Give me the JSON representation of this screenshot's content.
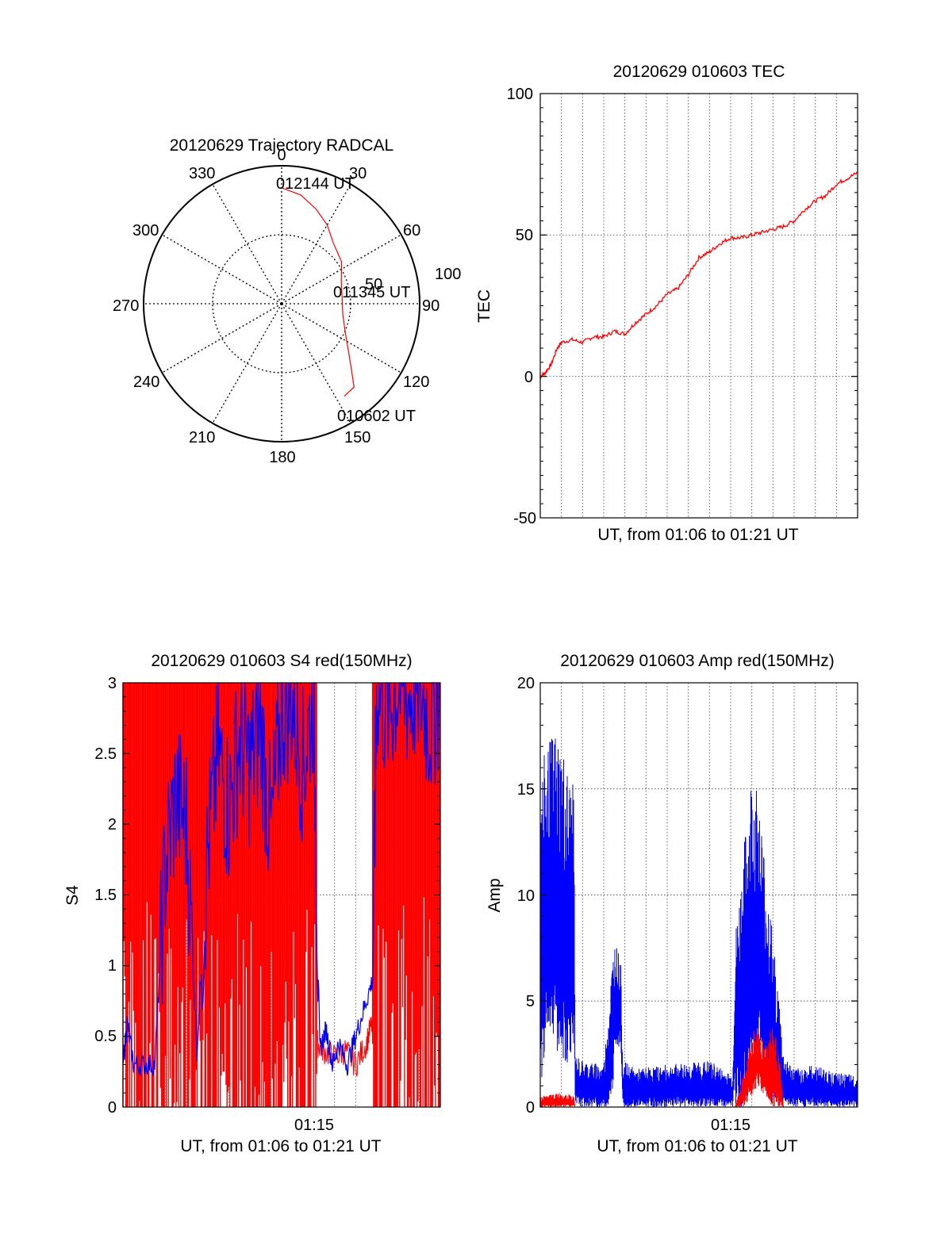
{
  "colors": {
    "red": "#ff0000",
    "blue": "#0000ff",
    "grid": "#555555",
    "axis": "#000000"
  },
  "polar": {
    "title": "20120629 Trajectory RADCAL",
    "angle_labels": [
      "0",
      "30",
      "60",
      "90",
      "120",
      "150",
      "180",
      "210",
      "240",
      "270",
      "300",
      "330"
    ],
    "radius_labels": [
      "50",
      "100"
    ],
    "annotations": [
      "012144 UT",
      "011345 UT",
      "010602 UT"
    ]
  },
  "chart_data": [
    {
      "id": "trajectory",
      "type": "line",
      "title": "20120629 Trajectory RADCAL",
      "coords": "polar",
      "r_max": 100,
      "r_ticks": [
        50,
        100
      ],
      "angle_ticks": [
        0,
        30,
        60,
        90,
        120,
        150,
        180,
        210,
        240,
        270,
        300,
        330
      ],
      "series": [
        {
          "color": "#ff0000",
          "points": [
            {
              "az": 0,
              "r": 84
            },
            {
              "az": 10,
              "r": 80
            },
            {
              "az": 20,
              "r": 73
            },
            {
              "az": 30,
              "r": 66
            },
            {
              "az": 40,
              "r": 58
            },
            {
              "az": 55,
              "r": 53
            },
            {
              "az": 70,
              "r": 46
            },
            {
              "az": 85,
              "r": 44
            },
            {
              "az": 100,
              "r": 45
            },
            {
              "az": 115,
              "r": 51
            },
            {
              "az": 125,
              "r": 59
            },
            {
              "az": 133,
              "r": 69
            },
            {
              "az": 139,
              "r": 80
            },
            {
              "az": 146,
              "r": 81
            }
          ]
        }
      ],
      "annotations": [
        {
          "text": "012144 UT"
        },
        {
          "text": "011345 UT"
        },
        {
          "text": "010602 UT"
        }
      ]
    },
    {
      "id": "tec",
      "type": "line",
      "title": "20120629 010603 TEC",
      "xlabel": "UT, from 01:06 to 01:21 UT",
      "ylabel": "TEC",
      "ylim": [
        -50,
        100
      ],
      "yticks": [
        "100",
        "50",
        "0",
        "-50"
      ],
      "xlim": [
        0,
        15
      ],
      "grid": true,
      "series": [
        {
          "color": "#ff0000",
          "x": [
            0,
            0.2,
            0.5,
            0.8,
            1.0,
            1.5,
            2.0,
            2.5,
            3.0,
            3.5,
            4.0,
            4.5,
            5.0,
            5.5,
            6.0,
            6.5,
            7.0,
            7.5,
            8.0,
            8.5,
            9.0,
            9.5,
            10.0,
            10.5,
            11.0,
            11.5,
            12.0,
            12.5,
            13.0,
            13.5,
            14.0,
            14.5,
            15.0
          ],
          "y": [
            0,
            1,
            4,
            10,
            12,
            13,
            12,
            14,
            14,
            16,
            15,
            19,
            22,
            25,
            29,
            31,
            36,
            42,
            44,
            47,
            49,
            49,
            50,
            51,
            52,
            53,
            55,
            59,
            62,
            64,
            68,
            70,
            72
          ]
        }
      ]
    },
    {
      "id": "s4",
      "type": "line",
      "title": "20120629 010603 S4 red(150MHz)",
      "xlabel": "UT, from 01:06 to 01:21 UT",
      "ylabel": "S4",
      "ylim": [
        0,
        3
      ],
      "yticks": [
        "0",
        "0.5",
        "1",
        "1.5",
        "2",
        "2.5",
        "3"
      ],
      "xtick_labels": [
        "01:15"
      ],
      "xlim": [
        0,
        15
      ],
      "grid": true,
      "series": [
        {
          "color": "#ff0000",
          "style": "dense-spikes",
          "segments": [
            {
              "x0": 0,
              "x1": 9.2,
              "low": 0,
              "high": 3
            },
            {
              "x0": 11.8,
              "x1": 15,
              "low": 0,
              "high": 3
            }
          ],
          "x": [
            9.2,
            9.5,
            10,
            10.5,
            11,
            11.5,
            11.8
          ],
          "y": [
            0.45,
            0.4,
            0.35,
            0.4,
            0.3,
            0.45,
            0.6
          ]
        },
        {
          "color": "#0000ff",
          "x": [
            0,
            0.2,
            0.5,
            1,
            1.5,
            2,
            2.5,
            3,
            3.5,
            4,
            4.5,
            5,
            5.5,
            6,
            6.5,
            7,
            7.5,
            8,
            8.5,
            9,
            9.3,
            9.6,
            9.9,
            10.2,
            10.6,
            11,
            11.4,
            11.8,
            12,
            12.5,
            13,
            13.5,
            14,
            14.5,
            15
          ],
          "y": [
            0.3,
            0.6,
            0.3,
            0.3,
            0.3,
            1.7,
            2.2,
            2.0,
            0.4,
            1.8,
            2.5,
            2.1,
            2.6,
            2.4,
            2.7,
            1.9,
            2.8,
            2.9,
            2.4,
            2.9,
            0.4,
            0.55,
            0.3,
            0.45,
            0.3,
            0.5,
            0.7,
            0.9,
            3,
            2.8,
            3,
            2.9,
            3,
            2.7,
            3
          ]
        }
      ]
    },
    {
      "id": "amp",
      "type": "line",
      "title": "20120629 010603 Amp red(150MHz)",
      "xlabel": "UT, from 01:06 to 01:21 UT",
      "ylabel": "Amp",
      "ylim": [
        0,
        20
      ],
      "yticks": [
        "0",
        "5",
        "10",
        "15",
        "20"
      ],
      "xtick_labels": [
        "01:15"
      ],
      "xlim": [
        0,
        15
      ],
      "grid": true,
      "series": [
        {
          "color": "#0000ff",
          "style": "dense-envelope",
          "x": [
            0,
            0.3,
            0.7,
            1.0,
            1.3,
            1.6,
            1.65,
            2,
            3,
            3.4,
            3.5,
            3.8,
            3.9,
            4.5,
            6,
            8,
            9.1,
            9.2,
            9.6,
            10,
            10.3,
            10.6,
            11,
            11.3,
            11.5,
            12,
            13,
            14,
            15
          ],
          "upper": [
            16,
            17,
            18,
            17.5,
            16,
            15,
            2.5,
            2.2,
            2.0,
            7,
            8,
            7,
            2.2,
            1.8,
            2.0,
            2.2,
            1.5,
            8,
            12,
            16,
            15,
            12,
            8,
            5,
            2.5,
            1.8,
            2.0,
            1.6,
            1.5
          ],
          "lower": [
            0,
            4,
            3,
            2,
            2,
            3,
            0,
            0,
            0,
            0,
            2.5,
            3,
            0,
            0,
            0,
            0,
            0,
            0,
            0,
            1,
            2,
            1,
            0,
            0,
            0,
            0,
            0,
            0,
            0
          ]
        },
        {
          "color": "#ff0000",
          "style": "dense-envelope",
          "x": [
            0,
            0.5,
            1,
            1.6,
            1.65,
            3.5,
            3.9,
            9.2,
            9.6,
            10,
            10.3,
            10.6,
            11,
            11.3,
            11.5,
            15
          ],
          "upper": [
            0.5,
            0.6,
            0.7,
            0.5,
            0,
            0,
            0,
            0,
            1.5,
            3.5,
            4.0,
            3.0,
            4.0,
            2.5,
            0,
            0
          ],
          "lower": [
            0,
            0,
            0,
            0,
            0,
            0,
            0,
            0,
            0,
            0.5,
            1,
            0.5,
            0,
            0,
            0,
            0
          ]
        }
      ]
    }
  ],
  "tec": {
    "title": "20120629 010603 TEC",
    "xlabel": "UT, from 01:06 to 01:21 UT",
    "ylabel": "TEC",
    "yticks": [
      "100",
      "50",
      "0",
      "-50"
    ]
  },
  "s4": {
    "title": "20120629 010603 S4 red(150MHz)",
    "xlabel": "UT, from 01:06 to 01:21 UT",
    "ylabel": "S4",
    "xtick": "01:15",
    "yticks": [
      "3",
      "2.5",
      "2",
      "1.5",
      "1",
      "0.5",
      "0"
    ]
  },
  "amp": {
    "title": "20120629 010603 Amp red(150MHz)",
    "xlabel": "UT, from 01:06 to 01:21 UT",
    "ylabel": "Amp",
    "xtick": "01:15",
    "yticks": [
      "20",
      "15",
      "10",
      "5",
      "0"
    ]
  }
}
